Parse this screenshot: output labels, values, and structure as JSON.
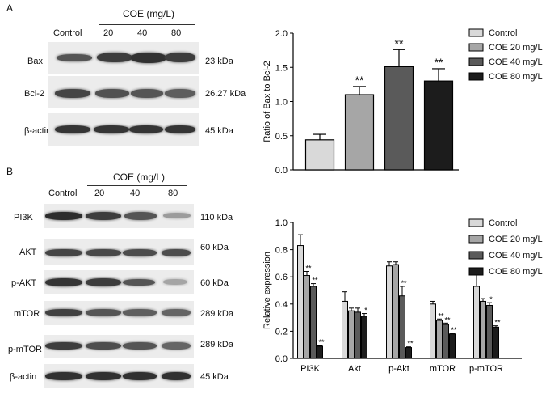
{
  "panelA": {
    "letter": "A",
    "treatment_header": "COE (mg/L)",
    "lanes": [
      "Control",
      "20",
      "40",
      "80"
    ],
    "blots": [
      {
        "name": "Bax",
        "size": "23 kDa",
        "intensity": [
          0.7,
          0.82,
          0.88,
          0.82
        ]
      },
      {
        "name": "Bcl-2",
        "size": "26.27 kDa",
        "intensity": [
          0.78,
          0.72,
          0.7,
          0.66
        ]
      },
      {
        "name": "β-actin",
        "size": "45 kDa",
        "intensity": [
          0.86,
          0.86,
          0.86,
          0.86
        ]
      }
    ]
  },
  "panelB": {
    "letter": "B",
    "treatment_header": "COE (mg/L)",
    "lanes": [
      "Control",
      "20",
      "40",
      "80"
    ],
    "blots": [
      {
        "name": "PI3K",
        "size": "110 kDa",
        "intensity": [
          0.9,
          0.82,
          0.7,
          0.35
        ]
      },
      {
        "name": "AKT",
        "size": "60 kDa",
        "intensity": [
          0.78,
          0.76,
          0.74,
          0.74
        ]
      },
      {
        "name": "p-AKT",
        "size": "60 kDa",
        "intensity": [
          0.86,
          0.82,
          0.7,
          0.3
        ]
      },
      {
        "name": "mTOR",
        "size": "289 kDa",
        "intensity": [
          0.8,
          0.7,
          0.65,
          0.62
        ]
      },
      {
        "name": "p-mTOR",
        "size": "289 kDa",
        "intensity": [
          0.82,
          0.74,
          0.7,
          0.62
        ]
      },
      {
        "name": "β-actin",
        "size": "45 kDa",
        "intensity": [
          0.88,
          0.88,
          0.88,
          0.88
        ]
      }
    ]
  },
  "colors": {
    "control": "#d9d9d9",
    "coe20": "#a6a6a6",
    "coe40": "#5a5a5a",
    "coe80": "#1c1c1c"
  },
  "chart_data": [
    {
      "type": "bar",
      "ylabel": "Ratio of Bax to Bcl-2",
      "ylim": [
        0,
        2.0
      ],
      "yticks": [
        "0.0",
        "0.5",
        "1.0",
        "1.5",
        "2.0"
      ],
      "legend_position": "top-right",
      "series": [
        {
          "name": "Control",
          "value": 0.44,
          "error": 0.08,
          "sig": ""
        },
        {
          "name": "COE 20 mg/L",
          "value": 1.1,
          "error": 0.12,
          "sig": "**"
        },
        {
          "name": "COE 40 mg/L",
          "value": 1.51,
          "error": 0.25,
          "sig": "**"
        },
        {
          "name": "COE 80 mg/L",
          "value": 1.3,
          "error": 0.18,
          "sig": "**"
        }
      ]
    },
    {
      "type": "bar",
      "ylabel": "Relative expression",
      "ylim": [
        0,
        1.0
      ],
      "yticks": [
        "0.0",
        "0.2",
        "0.4",
        "0.6",
        "0.8",
        "1.0"
      ],
      "legend_position": "top-right",
      "categories": [
        "PI3K",
        "Akt",
        "p-Akt",
        "mTOR",
        "p-mTOR"
      ],
      "series": [
        {
          "name": "Control",
          "values": [
            0.83,
            0.42,
            0.68,
            0.4,
            0.53
          ],
          "errors": [
            0.08,
            0.07,
            0.03,
            0.02,
            0.12
          ],
          "sig": [
            "",
            "",
            "",
            "",
            ""
          ]
        },
        {
          "name": "COE 20 mg/L",
          "values": [
            0.61,
            0.35,
            0.69,
            0.28,
            0.42
          ],
          "errors": [
            0.03,
            0.02,
            0.02,
            0.01,
            0.02
          ],
          "sig": [
            "**",
            "",
            "",
            "**",
            ""
          ]
        },
        {
          "name": "COE 40 mg/L",
          "values": [
            0.53,
            0.34,
            0.46,
            0.25,
            0.39
          ],
          "errors": [
            0.02,
            0.03,
            0.07,
            0.01,
            0.02
          ],
          "sig": [
            "**",
            "",
            "**",
            "**",
            "*"
          ]
        },
        {
          "name": "COE 80 mg/L",
          "values": [
            0.09,
            0.31,
            0.08,
            0.18,
            0.23
          ],
          "errors": [
            0.005,
            0.02,
            0.005,
            0.005,
            0.01
          ],
          "sig": [
            "**",
            "*",
            "**",
            "**",
            "**"
          ]
        }
      ]
    }
  ]
}
